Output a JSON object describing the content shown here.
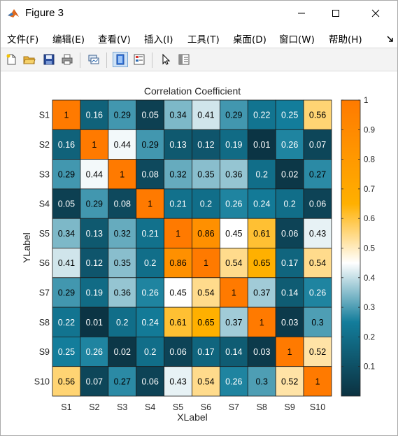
{
  "window": {
    "title": "Figure 3"
  },
  "menu": [
    "文件(F)",
    "编辑(E)",
    "查看(V)",
    "插入(I)",
    "工具(T)",
    "桌面(D)",
    "窗口(W)",
    "帮助(H)"
  ],
  "toolbar": {
    "buttons": [
      "new-figure",
      "open-file",
      "save-figure",
      "print-figure",
      "link-plot",
      "dock-figure",
      "insert-colorbar",
      "edit-plot",
      "property-inspector"
    ]
  },
  "chart_data": {
    "type": "heatmap",
    "title": "Correlation Coefficient",
    "xlabel": "XLabel",
    "ylabel": "YLabel",
    "x_categories": [
      "S1",
      "S2",
      "S3",
      "S4",
      "S5",
      "S6",
      "S7",
      "S8",
      "S9",
      "S10"
    ],
    "y_categories": [
      "S1",
      "S2",
      "S3",
      "S4",
      "S5",
      "S6",
      "S7",
      "S8",
      "S9",
      "S10"
    ],
    "values": [
      [
        1,
        0.16,
        0.29,
        0.05,
        0.34,
        0.41,
        0.29,
        0.22,
        0.25,
        0.56
      ],
      [
        0.16,
        1,
        0.44,
        0.29,
        0.13,
        0.12,
        0.19,
        0.01,
        0.26,
        0.07
      ],
      [
        0.29,
        0.44,
        1,
        0.08,
        0.32,
        0.35,
        0.36,
        0.2,
        0.02,
        0.27
      ],
      [
        0.05,
        0.29,
        0.08,
        1,
        0.21,
        0.2,
        0.26,
        0.24,
        0.2,
        0.06
      ],
      [
        0.34,
        0.13,
        0.32,
        0.21,
        1,
        0.86,
        0.45,
        0.61,
        0.06,
        0.43
      ],
      [
        0.41,
        0.12,
        0.35,
        0.2,
        0.86,
        1,
        0.54,
        0.65,
        0.17,
        0.54
      ],
      [
        0.29,
        0.19,
        0.36,
        0.26,
        0.45,
        0.54,
        1,
        0.37,
        0.14,
        0.26
      ],
      [
        0.22,
        0.01,
        0.2,
        0.24,
        0.61,
        0.65,
        0.37,
        1,
        0.03,
        0.3
      ],
      [
        0.25,
        0.26,
        0.02,
        0.2,
        0.06,
        0.17,
        0.14,
        0.03,
        1,
        0.52
      ],
      [
        0.56,
        0.07,
        0.27,
        0.06,
        0.43,
        0.54,
        0.26,
        0.3,
        0.52,
        1
      ]
    ],
    "clim": [
      0,
      1
    ],
    "colorbar_ticks": [
      "0.1",
      "0.2",
      "0.3",
      "0.4",
      "0.5",
      "0.6",
      "0.7",
      "0.8",
      "0.9",
      "1"
    ],
    "colormap": [
      "#0b3140",
      "#137d9b",
      "#ffffff",
      "#ffb000",
      "#ff7a00"
    ],
    "colormap_stops": [
      0,
      0.25,
      0.45,
      0.65,
      1
    ]
  }
}
